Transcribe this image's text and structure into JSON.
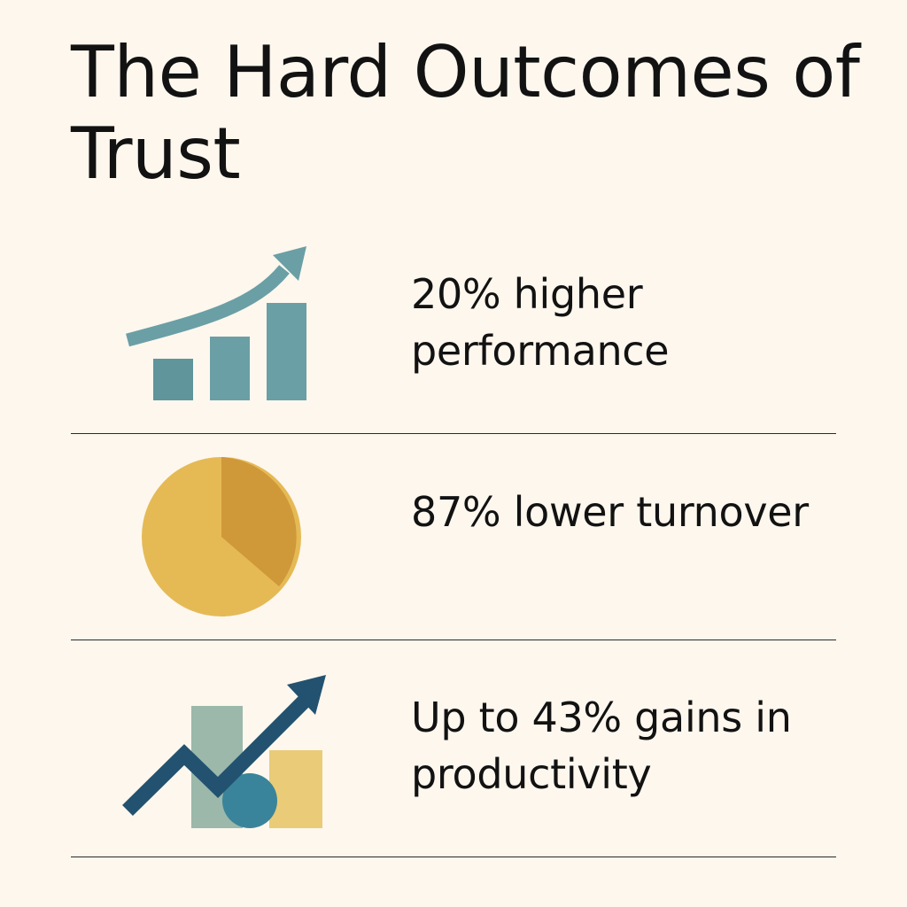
{
  "title": "The Hard Outcomes of Trust",
  "stats": [
    {
      "text": "20% higher performance",
      "icon": "growth-bar-chart-icon"
    },
    {
      "text": "87% lower turnover",
      "icon": "pie-chart-icon"
    },
    {
      "text": "Up to 43% gains in productivity",
      "icon": "trend-arrow-chart-icon"
    }
  ],
  "colors": {
    "background": "#FDF7EE",
    "text": "#121212",
    "teal": "#6A9FA5",
    "gold": "#E5BA55",
    "gold_dark": "#CF9839",
    "navy": "#22526F",
    "sage": "#9BB8AA",
    "ocean": "#39849A",
    "sand": "#EACB78"
  }
}
